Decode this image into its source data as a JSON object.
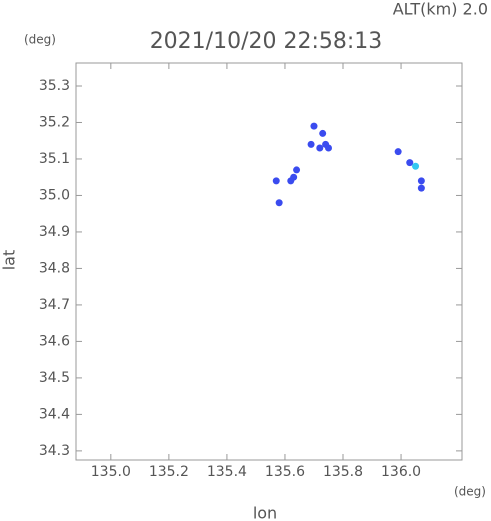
{
  "chart_data": {
    "type": "scatter",
    "title": "2021/10/20 22:58:13",
    "subtitle": "ALT(km) 2.0",
    "x_label": "lon",
    "y_label": "lat",
    "x_unit": "(deg)",
    "y_unit": "(deg)",
    "x": [
      135.7,
      135.73,
      135.69,
      135.72,
      135.75,
      135.74,
      135.63,
      135.62,
      135.57,
      135.64,
      135.58,
      135.99,
      136.03,
      136.05,
      136.07,
      136.07
    ],
    "y": [
      35.19,
      35.17,
      35.14,
      35.13,
      35.13,
      35.14,
      35.05,
      35.04,
      35.04,
      35.07,
      34.98,
      35.12,
      35.09,
      35.08,
      35.04,
      35.02
    ],
    "colors": [
      "#3a4bef",
      "#3a4bef",
      "#3a4bef",
      "#3a4bef",
      "#3a4bef",
      "#3a4bef",
      "#3a4bef",
      "#3a4bef",
      "#3a4bef",
      "#3a4bef",
      "#3a4bef",
      "#3a4bef",
      "#3a4bef",
      "#33c8f0",
      "#3a4bef",
      "#3a4bef"
    ],
    "xlim": [
      134.88,
      136.21
    ],
    "ylim": [
      34.275,
      35.363
    ],
    "xticks": [
      {
        "value": 135,
        "label": "135.0"
      },
      135.2,
      135.4,
      135.6,
      135.8,
      {
        "value": 136,
        "label": "136.0"
      }
    ],
    "yticks": [
      34.3,
      34.4,
      34.5,
      34.6,
      34.7,
      34.8,
      34.9,
      {
        "value": 35,
        "label": "35.0"
      },
      35.1,
      35.2,
      35.3
    ]
  }
}
